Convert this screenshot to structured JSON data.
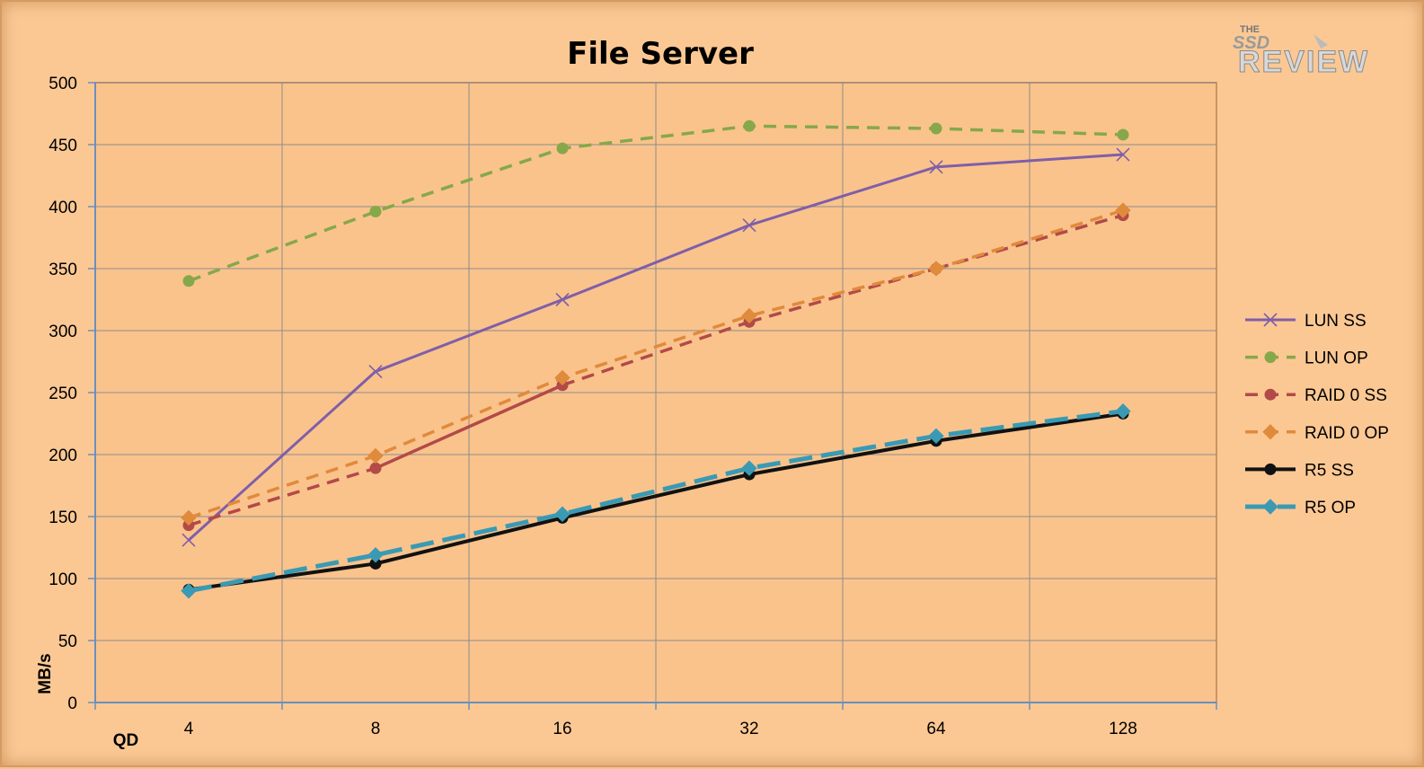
{
  "logo": {
    "text_small": "THE",
    "text_mid": "SSD",
    "text_big": "REVIEW"
  },
  "chart_data": {
    "type": "line",
    "title": "File Server",
    "xlabel": "QD",
    "ylabel": "MB/s",
    "categories": [
      "4",
      "8",
      "16",
      "32",
      "64",
      "128"
    ],
    "ylim": [
      0,
      500
    ],
    "yticks": [
      0,
      50,
      100,
      150,
      200,
      250,
      300,
      350,
      400,
      450,
      500
    ],
    "grid": true,
    "legend_position": "right",
    "series": [
      {
        "name": "LUN SS",
        "values": [
          131,
          267,
          325,
          385,
          432,
          442
        ],
        "color": "#7f5fa8",
        "marker": "x",
        "dash": "solid",
        "width": 3
      },
      {
        "name": "LUN OP",
        "values": [
          340,
          396,
          447,
          465,
          463,
          458
        ],
        "color": "#86a84a",
        "marker": "circle",
        "dash": "dashed",
        "width": 3.5
      },
      {
        "name": "RAID 0 SS",
        "values": [
          143,
          189,
          256,
          307,
          350,
          393
        ],
        "color": "#b24a48",
        "marker": "circle",
        "dash": "dashed-solid",
        "width": 3.5
      },
      {
        "name": "RAID 0 OP",
        "values": [
          149,
          199,
          262,
          312,
          350,
          397
        ],
        "color": "#e08a3c",
        "marker": "diamond",
        "dash": "dashed",
        "width": 3.5
      },
      {
        "name": "R5 SS",
        "values": [
          91,
          112,
          149,
          184,
          211,
          233
        ],
        "color": "#111111",
        "marker": "circle",
        "dash": "solid",
        "width": 4
      },
      {
        "name": "R5 OP",
        "values": [
          90,
          119,
          152,
          189,
          215,
          235
        ],
        "color": "#3a9ab4",
        "marker": "diamond",
        "dash": "longdash",
        "width": 5
      }
    ]
  }
}
